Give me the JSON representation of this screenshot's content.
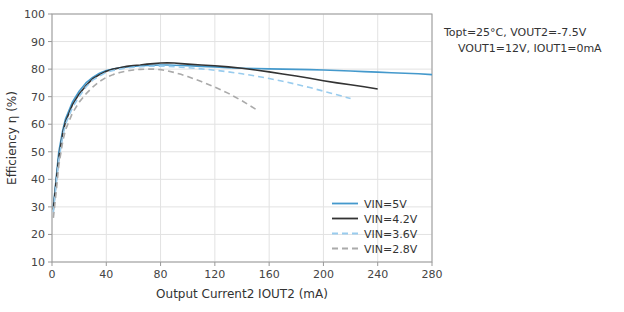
{
  "chart_data": {
    "type": "line",
    "xlabel": "Output Current2 IOUT2 (mA)",
    "ylabel": "Efficiency η (%)",
    "annotations": [
      "Topt=25°C, VOUT2=-7.5V",
      "VOUT1=12V, IOUT1=0mA"
    ],
    "xlim": [
      0,
      280
    ],
    "ylim": [
      10,
      100
    ],
    "xticks": [
      0,
      40,
      80,
      120,
      160,
      200,
      240,
      280
    ],
    "yticks": [
      10,
      20,
      30,
      40,
      50,
      60,
      70,
      80,
      90,
      100
    ],
    "grid": true,
    "legend": "lower right",
    "series": [
      {
        "name": "VIN=5V",
        "color": "#4499cc",
        "line_style": "solid",
        "x": [
          1,
          3,
          5,
          8,
          10,
          15,
          20,
          25,
          30,
          35,
          40,
          45,
          50,
          55,
          60,
          65,
          70,
          75,
          80,
          85,
          90,
          95,
          100,
          110,
          120,
          130,
          140,
          150,
          160,
          170,
          180,
          190,
          200,
          210,
          220,
          230,
          240,
          250,
          260,
          270,
          280
        ],
        "values": [
          30,
          40,
          50,
          58,
          62,
          68,
          72,
          75,
          77,
          78.5,
          79.5,
          80.0,
          80.5,
          80.8,
          81.0,
          81.2,
          81.3,
          81.4,
          81.5,
          81.5,
          81.4,
          81.3,
          81.2,
          81.0,
          80.8,
          80.5,
          80.3,
          80.2,
          80.1,
          80.0,
          79.9,
          79.8,
          79.7,
          79.5,
          79.3,
          79.1,
          78.9,
          78.7,
          78.5,
          78.3,
          78.0
        ]
      },
      {
        "name": "VIN=4.2V",
        "color": "#333333",
        "line_style": "solid",
        "x": [
          1,
          3,
          5,
          8,
          10,
          15,
          20,
          25,
          30,
          35,
          40,
          45,
          50,
          55,
          60,
          65,
          70,
          75,
          80,
          85,
          90,
          95,
          100,
          110,
          120,
          130,
          140,
          150,
          160,
          170,
          180,
          190,
          200,
          210,
          220,
          230,
          240
        ],
        "values": [
          29,
          39,
          48,
          57,
          61,
          67,
          71,
          74,
          76.5,
          78.0,
          79.2,
          80.0,
          80.5,
          81.0,
          81.3,
          81.5,
          81.8,
          82.0,
          82.2,
          82.3,
          82.2,
          82.0,
          81.8,
          81.5,
          81.2,
          80.8,
          80.3,
          79.7,
          79.0,
          78.2,
          77.5,
          76.7,
          75.8,
          75.0,
          74.3,
          73.6,
          72.8
        ]
      },
      {
        "name": "VIN=3.6V",
        "color": "#99ccee",
        "line_style": "dashed",
        "x": [
          1,
          3,
          5,
          8,
          10,
          15,
          20,
          25,
          30,
          35,
          40,
          45,
          50,
          55,
          60,
          65,
          70,
          75,
          80,
          85,
          90,
          95,
          100,
          110,
          120,
          130,
          140,
          150,
          160,
          170,
          180,
          190,
          200,
          210,
          220
        ],
        "values": [
          28,
          38,
          47,
          56,
          60,
          66,
          70,
          73.5,
          76.0,
          77.5,
          78.8,
          79.5,
          80.0,
          80.4,
          80.7,
          80.9,
          81.0,
          81.1,
          81.1,
          81.0,
          80.9,
          80.7,
          80.5,
          80.1,
          79.6,
          79.0,
          78.3,
          77.5,
          76.6,
          75.6,
          74.5,
          73.3,
          72.0,
          70.7,
          69.3
        ]
      },
      {
        "name": "VIN=2.8V",
        "color": "#aaaaaa",
        "line_style": "dashed",
        "x": [
          1,
          3,
          5,
          8,
          10,
          15,
          20,
          25,
          30,
          35,
          40,
          45,
          50,
          55,
          60,
          65,
          70,
          75,
          80,
          85,
          90,
          95,
          100,
          110,
          120,
          130,
          140,
          150
        ],
        "values": [
          26,
          35,
          45,
          54,
          58,
          64,
          68,
          71,
          73.5,
          75.5,
          77.0,
          78.0,
          78.8,
          79.3,
          79.7,
          79.9,
          80.0,
          80.0,
          79.8,
          79.4,
          78.8,
          78.1,
          77.3,
          75.5,
          73.5,
          71.2,
          68.5,
          65.5
        ]
      }
    ]
  }
}
